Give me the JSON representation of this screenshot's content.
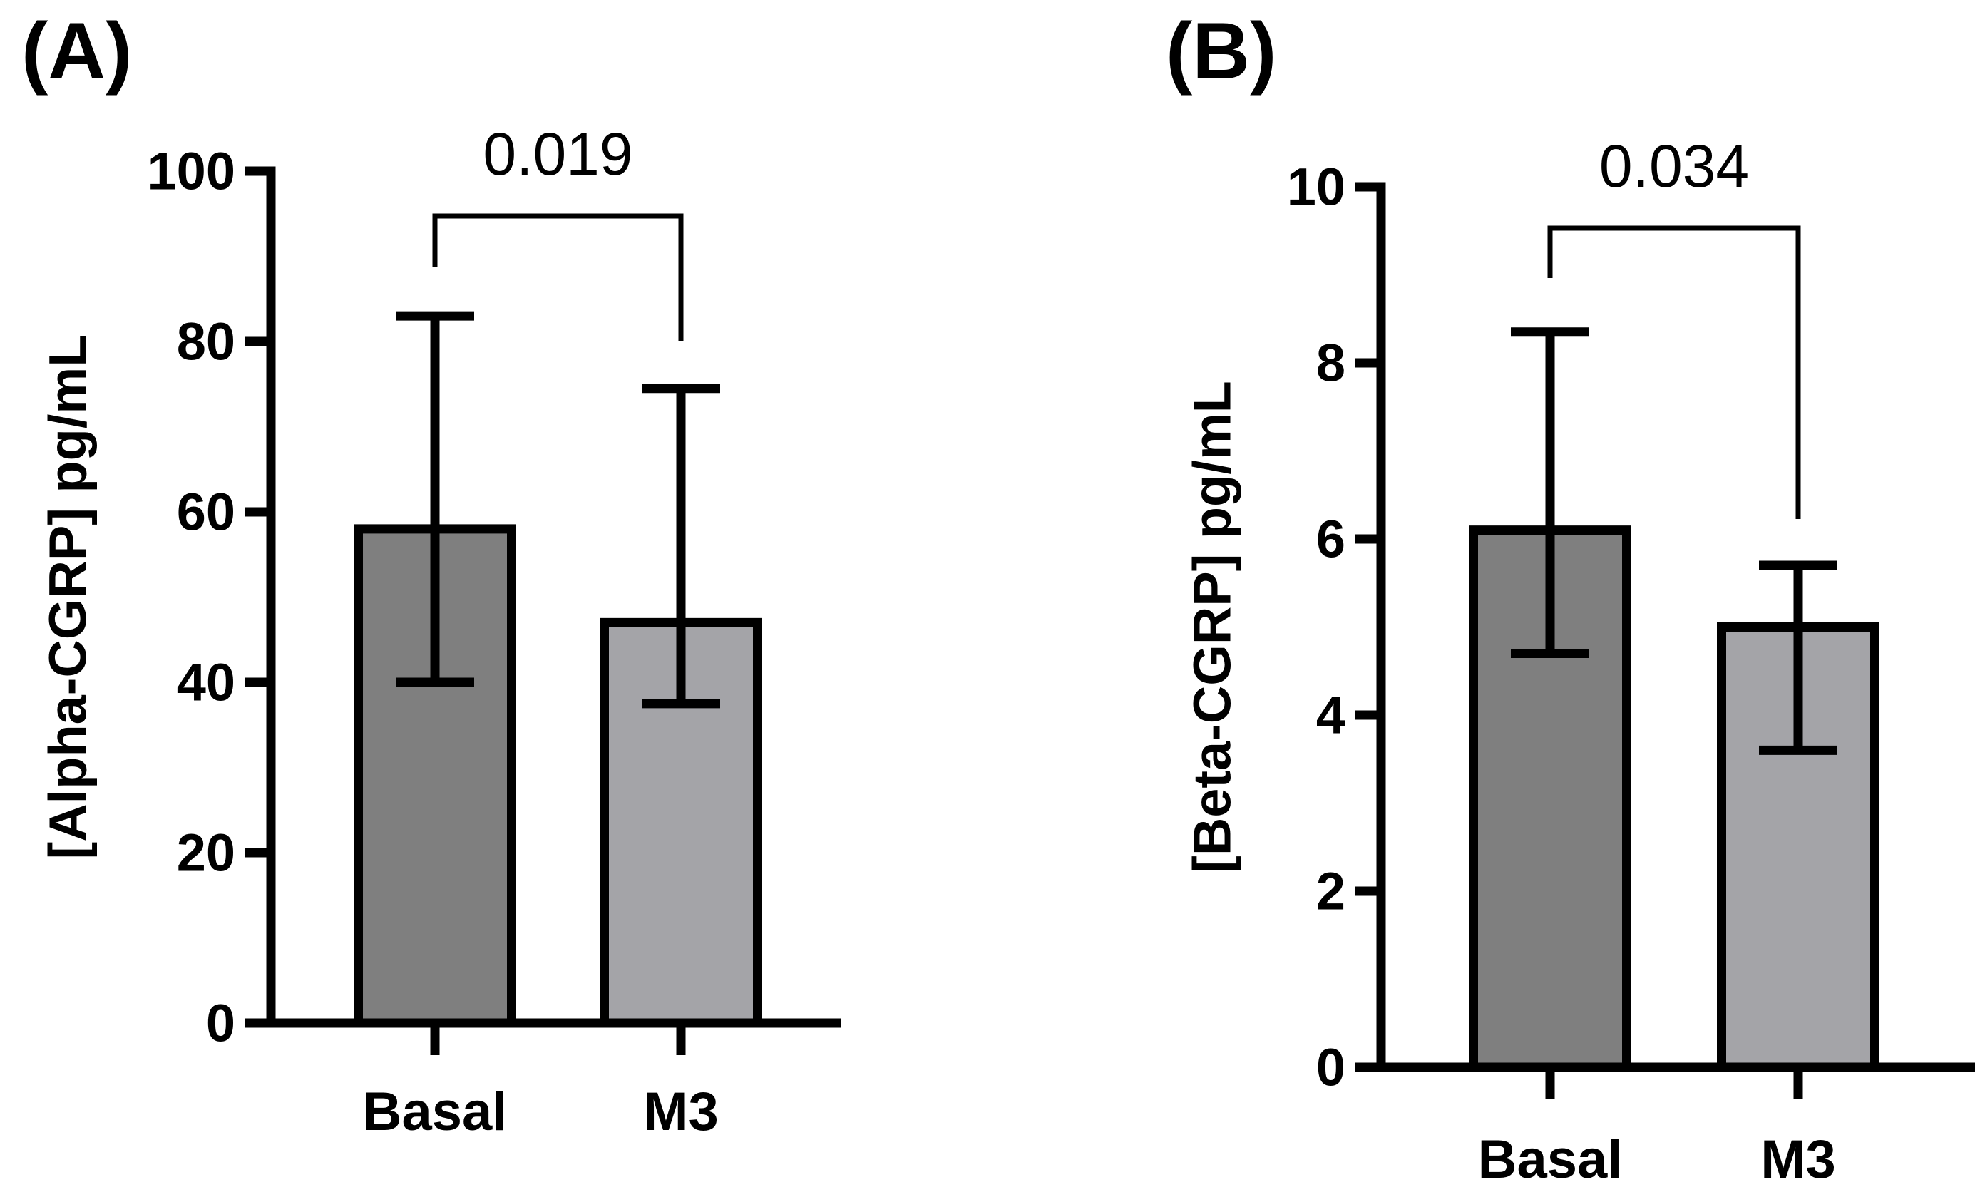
{
  "colors": {
    "basal_bar": "#7f7f7f",
    "m3_bar": "#a4a4a8",
    "stroke": "#000000",
    "background": "#ffffff"
  },
  "chart_data": [
    {
      "type": "bar",
      "panel": "(A)",
      "title": "",
      "ylabel": "[Alpha-CGRP] pg/mL",
      "xlabel": "",
      "categories": [
        "Basal",
        "M3"
      ],
      "values": [
        58,
        47
      ],
      "error_upper": [
        83,
        74.5
      ],
      "error_lower": [
        40,
        37.5
      ],
      "ylim": [
        0,
        100
      ],
      "yticks": [
        0,
        20,
        40,
        60,
        80,
        100
      ],
      "significance": {
        "between": [
          "Basal",
          "M3"
        ],
        "label": "0.019"
      },
      "grid": false,
      "legend": "none"
    },
    {
      "type": "bar",
      "panel": "(B)",
      "title": "",
      "ylabel": "[Beta-CGRP] pg/mL",
      "xlabel": "",
      "categories": [
        "Basal",
        "M3"
      ],
      "values": [
        6.1,
        5.0
      ],
      "error_upper": [
        8.35,
        5.7
      ],
      "error_lower": [
        4.7,
        3.6
      ],
      "ylim": [
        0,
        10
      ],
      "yticks": [
        0,
        2,
        4,
        6,
        8,
        10
      ],
      "significance": {
        "between": [
          "Basal",
          "M3"
        ],
        "label": "0.034"
      },
      "grid": false,
      "legend": "none"
    }
  ]
}
